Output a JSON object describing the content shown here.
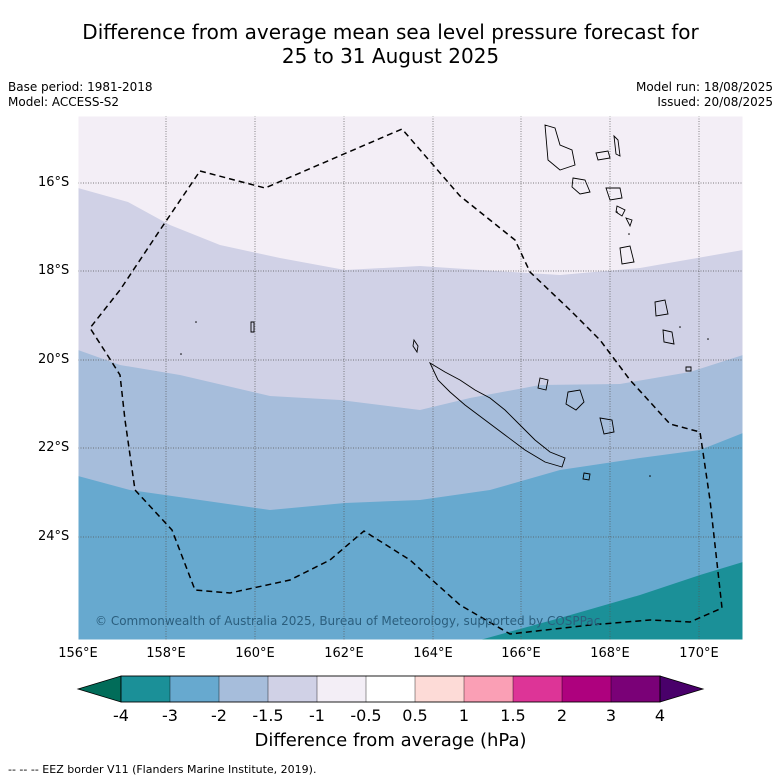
{
  "title_line1": "Difference from average mean sea level pressure forecast for",
  "title_line2": "25 to 31 August 2025",
  "base_period": "Base period: 1981-2018",
  "model": "Model: ACCESS-S2",
  "model_run": "Model run: 18/08/2025",
  "issued": "Issued: 20/08/2025",
  "lat_labels": [
    "16°S",
    "18°S",
    "20°S",
    "22°S",
    "24°S"
  ],
  "lon_labels": [
    "156°E",
    "158°E",
    "160°E",
    "162°E",
    "164°E",
    "166°E",
    "168°E",
    "170°E"
  ],
  "colorbar": {
    "ticks": [
      "-4",
      "-3",
      "-2",
      "-1.5",
      "-1",
      "-0.5",
      "0.5",
      "1",
      "1.5",
      "2",
      "3",
      "4"
    ],
    "colors": [
      "#1b9098",
      "#67a9cf",
      "#a6bddb",
      "#d0d1e6",
      "#f3eef6",
      "#ffffff",
      "#fddbd7",
      "#fa9fb5",
      "#dd3497",
      "#ae017e",
      "#7a0177"
    ],
    "under_color": "#016c59",
    "over_color": "#49006a",
    "label": "Difference from average (hPa)"
  },
  "copyright": "© Commonwealth of Australia 2025, Bureau of Meteorology, supported by COSPPac",
  "footnote": "--  --  -- EEZ border V11 (Flanders Marine Institute, 2019)."
}
